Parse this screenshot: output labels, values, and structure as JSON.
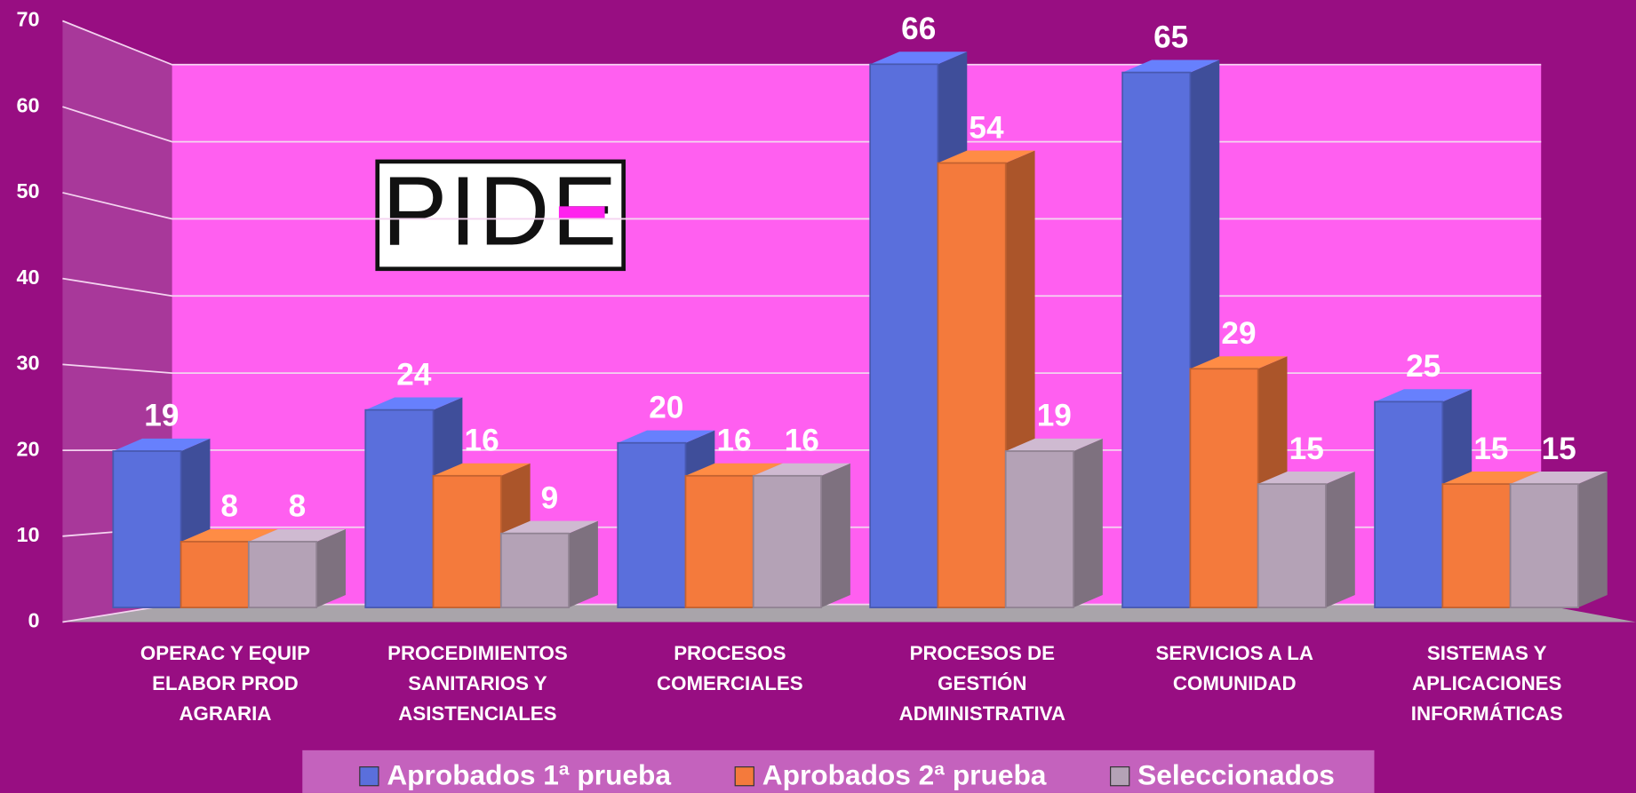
{
  "chart_data": {
    "type": "bar3d",
    "logo": "PIDE",
    "categories": [
      [
        "OPERAC Y EQUIP",
        "ELABOR  PROD",
        "AGRARIA"
      ],
      [
        "PROCEDIMIENTOS",
        "SANITARIOS Y",
        "ASISTENCIALES"
      ],
      [
        "PROCESOS",
        "COMERCIALES"
      ],
      [
        "PROCESOS DE",
        "GESTIÓN",
        "ADMINISTRATIVA"
      ],
      [
        "SERVICIOS A LA",
        "COMUNIDAD"
      ],
      [
        "SISTEMAS Y",
        "APLICACIONES",
        "INFORMÁTICAS"
      ]
    ],
    "series": [
      {
        "name": "Aprobados 1ª prueba",
        "color": "#5a6fdc",
        "values": [
          19,
          24,
          20,
          66,
          65,
          25
        ]
      },
      {
        "name": "Aprobados 2ª prueba",
        "color": "#f47a3c",
        "values": [
          8,
          16,
          16,
          54,
          29,
          15
        ]
      },
      {
        "name": "Seleccionados",
        "color": "#b4a2b6",
        "values": [
          8,
          9,
          16,
          19,
          15,
          15
        ]
      }
    ],
    "ylim": [
      0,
      70
    ],
    "yticks": [
      0,
      10,
      20,
      30,
      40,
      50,
      60,
      70
    ],
    "grid": true,
    "legend": "bottom"
  }
}
